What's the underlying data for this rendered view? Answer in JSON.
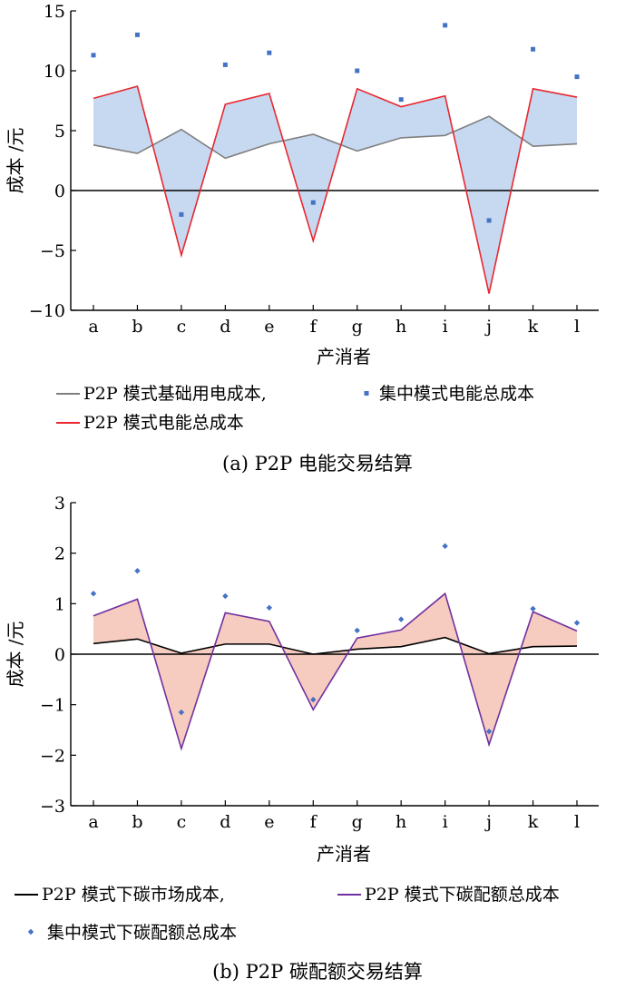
{
  "chart_data": [
    {
      "type": "line",
      "caption": "(a) P2P 电能交易结算",
      "xlabel": "产消者",
      "ylabel": "成本 /元",
      "categories": [
        "a",
        "b",
        "c",
        "d",
        "e",
        "f",
        "g",
        "h",
        "i",
        "j",
        "k",
        "l"
      ],
      "ylim": [
        -10,
        15
      ],
      "yticks": [
        "−10",
        "−5",
        "0",
        "5",
        "10",
        "15"
      ],
      "shading": "between P2P 模式基础用电成本 and P2P 模式电能总成本",
      "colors": {
        "base": "#7f7f7f",
        "total": "#e8272f",
        "central": "#4472c4",
        "fill": "#c7d9f1"
      },
      "legend": {
        "base": "P2P 模式基础用电成本,",
        "central": "集中模式电能总成本",
        "total": "P2P 模式电能总成本"
      },
      "series": [
        {
          "name": "P2P 模式基础用电成本",
          "values": [
            3.8,
            3.1,
            5.1,
            2.7,
            3.9,
            4.7,
            3.3,
            4.4,
            4.6,
            6.2,
            3.7,
            3.9
          ]
        },
        {
          "name": "P2P 模式电能总成本",
          "values": [
            7.7,
            8.7,
            -5.4,
            7.2,
            8.1,
            -4.2,
            8.5,
            7.0,
            7.9,
            -8.6,
            8.5,
            7.8
          ]
        },
        {
          "name": "集中模式电能总成本",
          "values": [
            11.3,
            13.0,
            -2.0,
            10.5,
            11.5,
            -1.0,
            10.0,
            7.6,
            13.8,
            -2.5,
            11.8,
            9.5
          ]
        }
      ]
    },
    {
      "type": "line",
      "caption": "(b) P2P 碳配额交易结算",
      "xlabel": "产消者",
      "ylabel": "成本 /元",
      "categories": [
        "a",
        "b",
        "c",
        "d",
        "e",
        "f",
        "g",
        "h",
        "i",
        "j",
        "k",
        "l"
      ],
      "ylim": [
        -3,
        3
      ],
      "yticks": [
        "−3",
        "−2",
        "−1",
        "0",
        "1",
        "2",
        "3"
      ],
      "shading": "between P2P 模式下碳市场成本 and P2P 模式下碳配额总成本",
      "colors": {
        "base": "#000000",
        "total": "#7030a0",
        "central": "#4472c4",
        "fill": "#f6cbc0"
      },
      "legend": {
        "base": "P2P 模式下碳市场成本,",
        "central": "集中模式下碳配额总成本",
        "total": "P2P 模式下碳配额总成本"
      },
      "series": [
        {
          "name": "P2P 模式下碳市场成本",
          "values": [
            0.21,
            0.3,
            0.02,
            0.2,
            0.2,
            0.0,
            0.1,
            0.15,
            0.33,
            0.01,
            0.15,
            0.16
          ]
        },
        {
          "name": "P2P 模式下碳配额总成本",
          "values": [
            0.76,
            1.09,
            -1.87,
            0.82,
            0.65,
            -1.1,
            0.32,
            0.48,
            1.2,
            -1.79,
            0.84,
            0.46
          ]
        },
        {
          "name": "集中模式下碳配额总成本",
          "values": [
            1.2,
            1.65,
            -1.15,
            1.15,
            0.92,
            -0.9,
            0.47,
            0.69,
            2.14,
            -1.53,
            0.9,
            0.62
          ]
        }
      ]
    }
  ]
}
